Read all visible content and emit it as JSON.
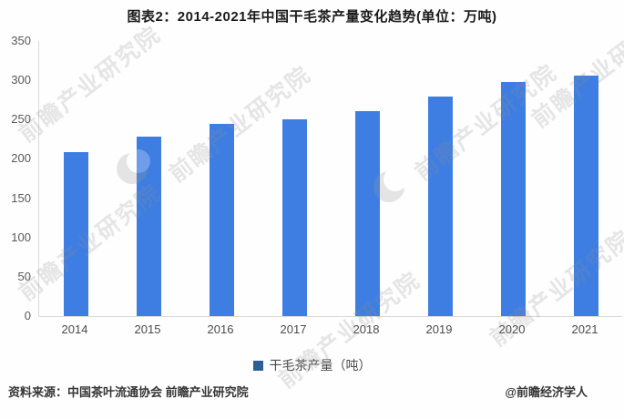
{
  "title": "图表2：2014-2021年中国干毛茶产量变化趋势(单位：万吨)",
  "chart_data": {
    "type": "bar",
    "title": "图表2：2014-2021年中国干毛茶产量变化趋势(单位：万吨)",
    "categories": [
      "2014",
      "2015",
      "2016",
      "2017",
      "2018",
      "2019",
      "2020",
      "2021"
    ],
    "series": [
      {
        "name": "干毛茶产量（吨）",
        "values": [
          209,
          228,
          244,
          250,
          261,
          279,
          298,
          306
        ]
      }
    ],
    "unit": "万吨",
    "xlabel": "",
    "ylabel": "",
    "ylim": [
      0,
      350
    ],
    "ytick_interval": 50,
    "grid": false,
    "legend_position": "bottom",
    "bar_color": "#3e7ee2"
  },
  "legend": {
    "marker_color": "#2e5f94",
    "label": "干毛茶产量（吨）"
  },
  "footer": {
    "source": "资料来源：中国茶叶流通协会 前瞻产业研究院",
    "credit": "@前瞻经济学人"
  },
  "watermark": {
    "text": "前瞻产业研究院"
  }
}
